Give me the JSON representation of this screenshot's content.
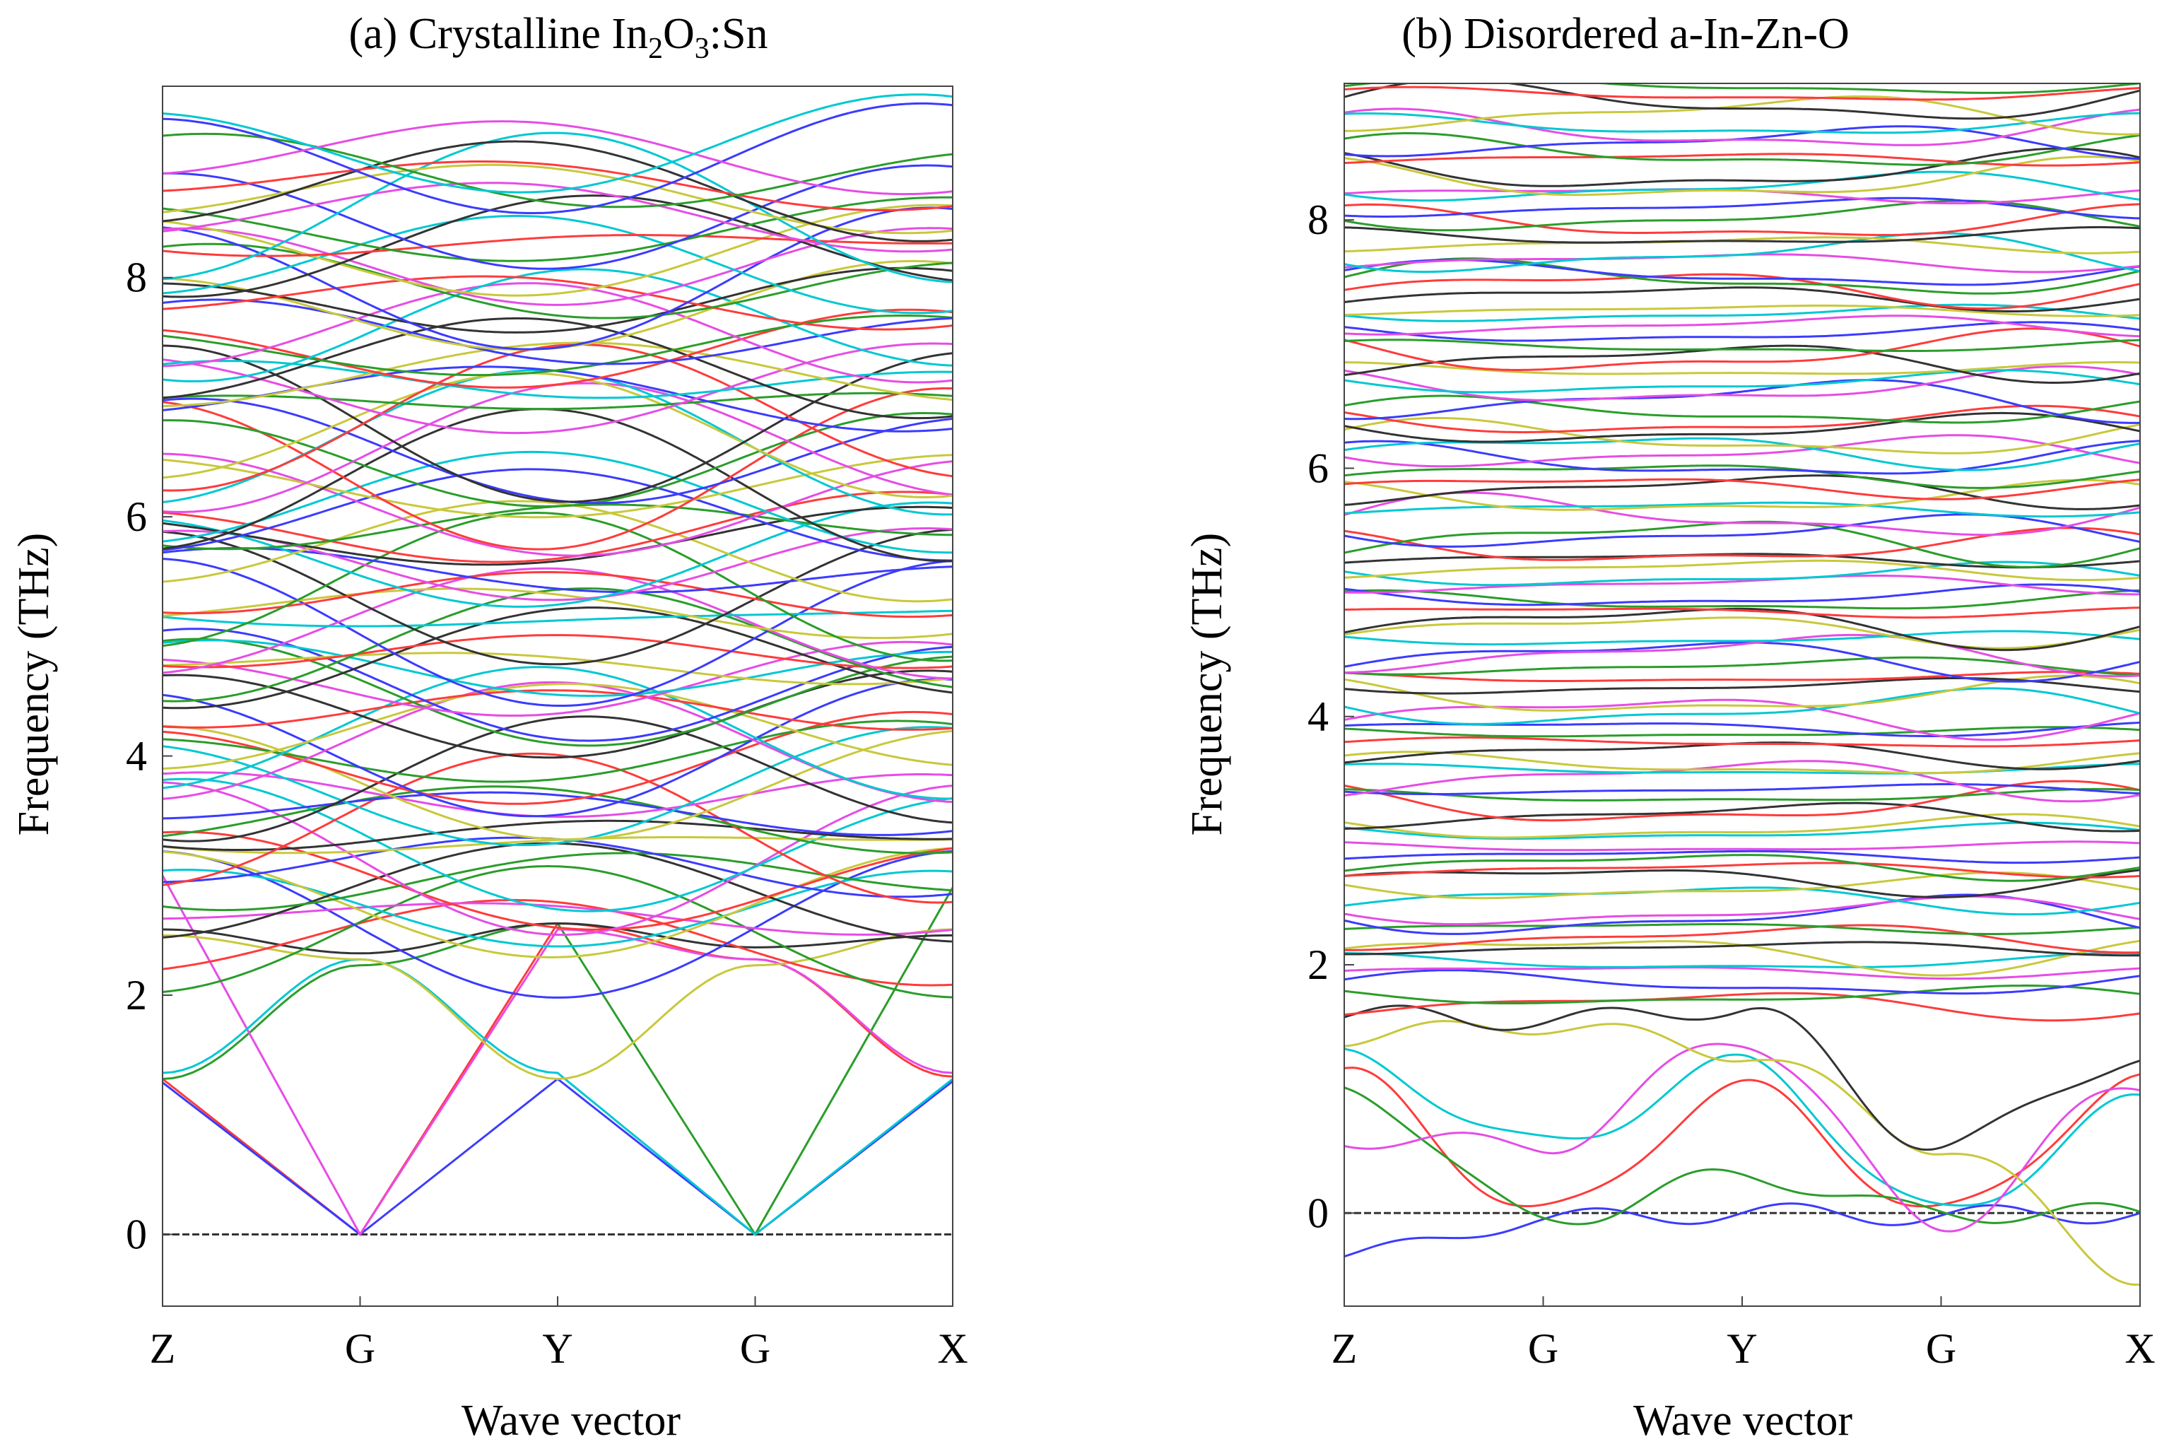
{
  "chart_data": [
    {
      "type": "line",
      "panel": "a",
      "title_prefix": "(a) Crystalline In",
      "title_sub1": "2",
      "title_mid": "O",
      "title_sub2": "3",
      "title_suffix": ":Sn",
      "xlabel": "Wave vector",
      "ylabel": "Frequency  (THz)",
      "x_ticks": [
        "Z",
        "G",
        "Y",
        "G",
        "X"
      ],
      "y_ticks": [
        0,
        2,
        4,
        6,
        8
      ],
      "ylim": [
        -0.6,
        9.6
      ],
      "series_count": 96,
      "palette": [
        "#ff3b3b",
        "#2a9d2a",
        "#3b3bff",
        "#e64ce6",
        "#00c8d2",
        "#c8c83c",
        "#333333"
      ],
      "acoustic_branches": [
        {
          "color": "#ff3b3b",
          "values": [
            1.3,
            0.0,
            2.6,
            2.3,
            1.32
          ]
        },
        {
          "color": "#3b3bff",
          "values": [
            1.27,
            0.0,
            1.3,
            0.0,
            1.28
          ]
        },
        {
          "color": "#2a9d2a",
          "values": [
            1.3,
            2.25,
            2.6,
            0.0,
            2.9
          ]
        },
        {
          "color": "#e64ce6",
          "values": [
            3.0,
            0.0,
            2.55,
            2.3,
            1.35
          ]
        },
        {
          "color": "#00c8d2",
          "values": [
            1.35,
            2.3,
            1.35,
            0.0,
            1.3
          ]
        },
        {
          "color": "#c8c83c",
          "values": [
            2.5,
            2.3,
            1.3,
            2.25,
            2.55
          ]
        },
        {
          "color": "#333333",
          "values": [
            2.55,
            2.35,
            2.6,
            2.4,
            2.5
          ]
        }
      ]
    },
    {
      "type": "line",
      "panel": "b",
      "title": "(b) Disordered a-In-Zn-O",
      "xlabel": "Wave vector",
      "ylabel": "Frequency  (THz)",
      "x_ticks": [
        "Z",
        "G",
        "Y",
        "G",
        "X"
      ],
      "y_ticks": [
        0,
        2,
        4,
        6,
        8
      ],
      "ylim": [
        -0.75,
        9.1
      ],
      "series_count": 100,
      "palette": [
        "#ff3b3b",
        "#2a9d2a",
        "#3b3bff",
        "#e64ce6",
        "#00c8d2",
        "#c8c83c",
        "#333333"
      ],
      "low_branches": [
        {
          "color": "#3b3bff",
          "values": [
            -0.35,
            -0.05,
            0.0,
            -0.02,
            0.0
          ]
        },
        {
          "color": "#ff3b3b",
          "values": [
            1.1,
            0.0,
            1.0,
            0.0,
            1.05
          ]
        },
        {
          "color": "#00c8d2",
          "values": [
            1.25,
            0.55,
            1.2,
            0.0,
            0.88
          ]
        },
        {
          "color": "#2a9d2a",
          "values": [
            1.0,
            -0.05,
            0.3,
            0.0,
            0.0
          ]
        },
        {
          "color": "#e64ce6",
          "values": [
            0.6,
            0.55,
            1.4,
            -0.08,
            1.05
          ]
        },
        {
          "color": "#c8c83c",
          "values": [
            1.42,
            1.52,
            1.3,
            0.55,
            -0.5
          ]
        },
        {
          "color": "#333333",
          "values": [
            1.6,
            1.55,
            1.65,
            0.55,
            1.25
          ]
        }
      ]
    }
  ]
}
